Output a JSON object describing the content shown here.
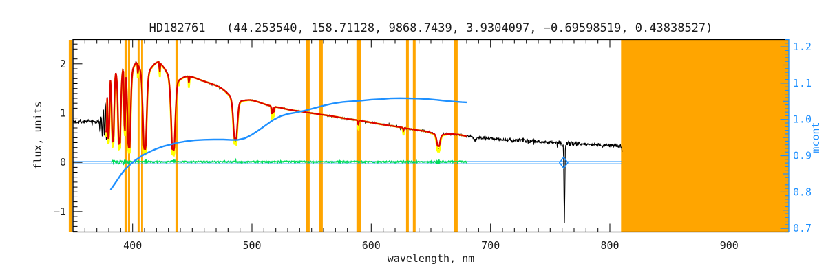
{
  "chart_data": {
    "type": "line",
    "title": "HD182761   (44.253540, 158.71128, 9868.7439, 3.9304097, −0.69598519, 0.43838527)",
    "xlabel": "wavelength, nm",
    "ylabel": "flux, units",
    "ylabel_right": "mcont",
    "x_range": [
      350,
      950
    ],
    "y_range": [
      -1.42,
      2.5
    ],
    "y2_range": [
      0.689,
      1.221
    ],
    "x_tick_values": [
      400,
      500,
      600,
      700,
      800,
      900
    ],
    "x_tick_labels": [
      "400",
      "500",
      "600",
      "700",
      "800",
      "900"
    ],
    "x_minor_step": 10,
    "y_tick_values": [
      -1,
      0,
      1,
      2
    ],
    "y_tick_labels": [
      "−1",
      "0",
      "1",
      "2"
    ],
    "y_minor_step": 0.1,
    "y2_tick_values": [
      0.7,
      0.8,
      0.9,
      1.0,
      1.1,
      1.2
    ],
    "y2_tick_labels": [
      "0.7",
      "0.8",
      "0.9",
      "1.0",
      "1.1",
      "1.2"
    ],
    "y2_minor_step": 0.01,
    "legend": "none",
    "grid": false,
    "masked_bands_nm": [
      [
        346.5,
        349.1
      ],
      [
        393.2,
        395.1
      ],
      [
        396.1,
        397.9
      ],
      [
        404.2,
        405.9
      ],
      [
        407.1,
        408.8
      ],
      [
        435.9,
        437.7
      ],
      [
        545.5,
        548.4
      ],
      [
        556.5,
        559.4
      ],
      [
        587.6,
        591.7
      ],
      [
        629.2,
        631.5
      ],
      [
        634.9,
        637.2
      ],
      [
        669.6,
        672.4
      ],
      [
        809.4,
        950.0
      ]
    ],
    "spectrum_continuum": [
      [
        350,
        0.83
      ],
      [
        358,
        0.83
      ],
      [
        364,
        0.825
      ],
      [
        369,
        0.82
      ],
      [
        371.5,
        0.825
      ],
      [
        372.5,
        0.88
      ],
      [
        374,
        1.08
      ],
      [
        375.5,
        1.3
      ],
      [
        377,
        1.52
      ],
      [
        378.5,
        1.72
      ],
      [
        380,
        1.88
      ],
      [
        382,
        1.97
      ],
      [
        385,
        2.03
      ],
      [
        388,
        2.06
      ],
      [
        391,
        2.09
      ],
      [
        394,
        2.12
      ],
      [
        398,
        2.13
      ],
      [
        402,
        2.15
      ],
      [
        406,
        2.13
      ],
      [
        410,
        2.11
      ],
      [
        414,
        2.1
      ],
      [
        418,
        2.09
      ],
      [
        422,
        2.07
      ],
      [
        427,
        2.03
      ],
      [
        432,
        1.97
      ],
      [
        436,
        1.91
      ],
      [
        440,
        1.85
      ],
      [
        445,
        1.79
      ],
      [
        450,
        1.74
      ],
      [
        456,
        1.68
      ],
      [
        462,
        1.63
      ],
      [
        468,
        1.58
      ],
      [
        474,
        1.53
      ],
      [
        480,
        1.48
      ],
      [
        486,
        1.43
      ],
      [
        491,
        1.355
      ],
      [
        495,
        1.31
      ],
      [
        500,
        1.27
      ],
      [
        506,
        1.22
      ],
      [
        512,
        1.17
      ],
      [
        518,
        1.13
      ],
      [
        524,
        1.11
      ],
      [
        530,
        1.075
      ],
      [
        536,
        1.05
      ],
      [
        542,
        1.03
      ],
      [
        548,
        1.005
      ],
      [
        554,
        0.985
      ],
      [
        561,
        0.96
      ],
      [
        568,
        0.935
      ],
      [
        575,
        0.905
      ],
      [
        582,
        0.875
      ],
      [
        589,
        0.855
      ],
      [
        596,
        0.825
      ],
      [
        603,
        0.795
      ],
      [
        610,
        0.765
      ],
      [
        617,
        0.74
      ],
      [
        624,
        0.715
      ],
      [
        631,
        0.685
      ],
      [
        638,
        0.655
      ],
      [
        645,
        0.635
      ],
      [
        652,
        0.615
      ],
      [
        659,
        0.595
      ],
      [
        666,
        0.58
      ],
      [
        673,
        0.565
      ],
      [
        680,
        0.53
      ],
      [
        688,
        0.505
      ],
      [
        696,
        0.49
      ],
      [
        704,
        0.475
      ],
      [
        712,
        0.46
      ],
      [
        720,
        0.45
      ],
      [
        728,
        0.44
      ],
      [
        736,
        0.43
      ],
      [
        744,
        0.415
      ],
      [
        752,
        0.405
      ],
      [
        760,
        0.4
      ],
      [
        768,
        0.39
      ],
      [
        776,
        0.375
      ],
      [
        784,
        0.365
      ],
      [
        792,
        0.355
      ],
      [
        800,
        0.345
      ],
      [
        806,
        0.34
      ],
      [
        811,
        0.335
      ]
    ],
    "absorption_lines": [
      {
        "c": 372.8,
        "min": 0.62,
        "w": 0.55,
        "fit": true,
        "wing": false
      },
      {
        "c": 374.6,
        "min": 0.56,
        "w": 0.6,
        "fit": true,
        "wing": false
      },
      {
        "c": 376.3,
        "min": 0.52,
        "w": 0.65,
        "fit": true,
        "wing": false
      },
      {
        "c": 378.0,
        "min": 0.5,
        "w": 0.7,
        "fit": true,
        "wing": false
      },
      {
        "c": 379.9,
        "min": 0.46,
        "w": 0.9,
        "fit": true,
        "wing": true
      },
      {
        "c": 383.5,
        "min": 0.38,
        "w": 1.2,
        "fit": true,
        "wing": true
      },
      {
        "c": 388.9,
        "min": 0.33,
        "w": 1.4,
        "fit": true,
        "wing": true
      },
      {
        "c": 393.4,
        "min": 0.55,
        "w": 0.9,
        "fit": true,
        "wing": false
      },
      {
        "c": 397.0,
        "min": 0.26,
        "w": 1.6,
        "fit": true,
        "wing": true
      },
      {
        "c": 410.2,
        "min": 0.22,
        "w": 1.9,
        "fit": true,
        "wing": true
      },
      {
        "c": 434.0,
        "min": 0.21,
        "w": 2.1,
        "fit": true,
        "wing": true
      },
      {
        "c": 486.1,
        "min": 0.43,
        "w": 2.1,
        "fit": true,
        "wing": true
      },
      {
        "c": 656.3,
        "min": 0.28,
        "w": 1.7,
        "fit": true,
        "wing": true
      },
      {
        "c": 404.5,
        "min": 1.72,
        "w": 0.45,
        "fit": true,
        "wing": false
      },
      {
        "c": 407.8,
        "min": 1.78,
        "w": 0.45,
        "fit": true,
        "wing": false
      },
      {
        "c": 422.7,
        "min": 1.78,
        "w": 0.5,
        "fit": true,
        "wing": false
      },
      {
        "c": 438.4,
        "min": 1.58,
        "w": 0.5,
        "fit": true,
        "wing": false
      },
      {
        "c": 447.2,
        "min": 1.56,
        "w": 0.45,
        "fit": true,
        "wing": false
      },
      {
        "c": 516.8,
        "min": 0.93,
        "w": 0.55,
        "fit": true,
        "wing": false
      },
      {
        "c": 518.4,
        "min": 0.95,
        "w": 0.45,
        "fit": true,
        "wing": false
      },
      {
        "c": 589.1,
        "min": 0.7,
        "w": 0.5,
        "fit": true,
        "wing": false
      },
      {
        "c": 627.0,
        "min": 0.6,
        "w": 0.45,
        "fit": true,
        "wing": false
      },
      {
        "c": 687.3,
        "min": 0.45,
        "w": 1.0,
        "fit": false,
        "wing": false
      },
      {
        "c": 718.5,
        "min": 0.425,
        "w": 0.8,
        "fit": false,
        "wing": false
      },
      {
        "c": 760.4,
        "min": 0.34,
        "w": 0.6,
        "fit": false,
        "wing": false
      },
      {
        "c": 761.9,
        "min": -1.27,
        "w": 0.5,
        "fit": false,
        "wing": false
      },
      {
        "c": 810.1,
        "min": 0.22,
        "w": 0.35,
        "fit": false,
        "wing": false
      }
    ],
    "spectrum_range_nm": [
      350,
      810.6
    ],
    "fit_range_nm": [
      377.8,
      680.2
    ],
    "residual": {
      "range_nm": [
        382,
        680
      ],
      "level": 0.012,
      "amplitude": 0.016,
      "core_boost_centers": [
        383.5,
        388.9,
        393.4,
        397.0,
        410.2,
        434.0,
        486.1,
        656.3
      ]
    },
    "zero_lines": {
      "flux_values": [
        0.015,
        -0.028
      ],
      "range_nm": [
        350,
        810.4
      ]
    },
    "diamond_marker": {
      "wavelength_nm": 761.3,
      "flux": -0.006
    },
    "mcont_curve": [
      [
        381.5,
        0.806
      ],
      [
        384,
        0.818
      ],
      [
        387,
        0.832
      ],
      [
        390,
        0.847
      ],
      [
        394,
        0.864
      ],
      [
        398,
        0.876
      ],
      [
        402,
        0.887
      ],
      [
        406,
        0.896
      ],
      [
        410,
        0.904
      ],
      [
        415,
        0.912
      ],
      [
        420,
        0.919
      ],
      [
        426,
        0.926
      ],
      [
        432,
        0.931
      ],
      [
        438,
        0.936
      ],
      [
        445,
        0.94
      ],
      [
        452,
        0.9425
      ],
      [
        460,
        0.944
      ],
      [
        468,
        0.9445
      ],
      [
        476,
        0.9445
      ],
      [
        483,
        0.9435
      ],
      [
        488,
        0.9435
      ],
      [
        494,
        0.948
      ],
      [
        500,
        0.958
      ],
      [
        506,
        0.971
      ],
      [
        512,
        0.985
      ],
      [
        518,
        0.999
      ],
      [
        524,
        1.009
      ],
      [
        530,
        1.015
      ],
      [
        537,
        1.019
      ],
      [
        544,
        1.024
      ],
      [
        552,
        1.031
      ],
      [
        560,
        1.038
      ],
      [
        568,
        1.044
      ],
      [
        576,
        1.048
      ],
      [
        584,
        1.05
      ],
      [
        592,
        1.052
      ],
      [
        600,
        1.0545
      ],
      [
        608,
        1.056
      ],
      [
        616,
        1.058
      ],
      [
        624,
        1.0585
      ],
      [
        632,
        1.058
      ],
      [
        640,
        1.0575
      ],
      [
        648,
        1.056
      ],
      [
        656,
        1.0535
      ],
      [
        663,
        1.051
      ],
      [
        670,
        1.049
      ],
      [
        676,
        1.0475
      ],
      [
        680,
        1.047
      ]
    ],
    "colors": {
      "spectrum": "#000000",
      "fit": "#DD0000",
      "fit_under": "#FFFF00",
      "residual": "#00DC5A",
      "mcont": "#1E90FF",
      "mask": "#FFA500",
      "frame": "#000000",
      "text": "#1a1a1a"
    }
  }
}
